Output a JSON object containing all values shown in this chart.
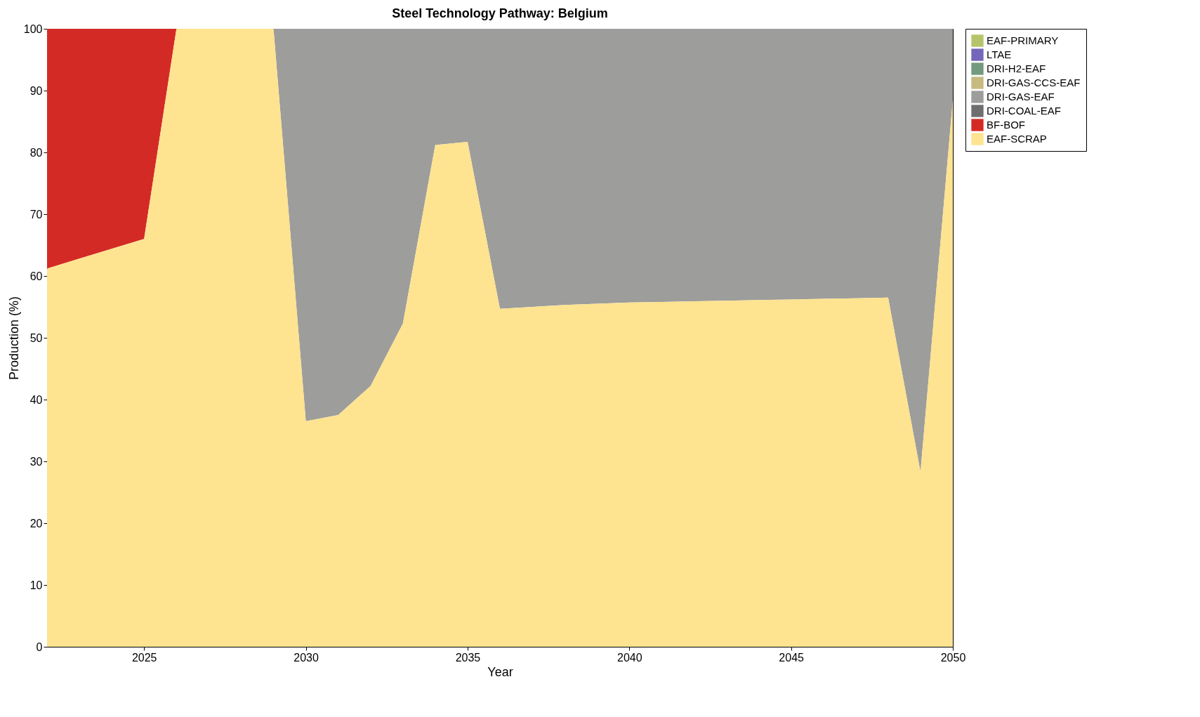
{
  "chart_data": {
    "type": "area",
    "stacked": true,
    "title": "Steel Technology Pathway: Belgium",
    "xlabel": "Year",
    "ylabel": "Production (%)",
    "x": [
      2022,
      2023,
      2024,
      2025,
      2026,
      2027,
      2028,
      2029,
      2030,
      2031,
      2032,
      2033,
      2034,
      2035,
      2036,
      2037,
      2038,
      2039,
      2040,
      2041,
      2042,
      2043,
      2044,
      2045,
      2046,
      2047,
      2048,
      2049,
      2050
    ],
    "series": [
      {
        "name": "EAF-SCRAP",
        "color": "#fee391",
        "values": [
          61.2,
          62.8,
          64.4,
          66,
          100,
          100,
          100,
          100,
          36.5,
          37.5,
          42.2,
          52.3,
          81.2,
          81.7,
          54.7,
          55,
          55.3,
          55.5,
          55.7,
          55.8,
          55.9,
          56,
          56.1,
          56.2,
          56.3,
          56.4,
          56.5,
          28.3,
          88.5
        ]
      },
      {
        "name": "BF-BOF",
        "color": "#d42a25",
        "values": [
          38.8,
          37.2,
          35.6,
          34,
          0,
          null,
          null,
          null,
          null,
          null,
          null,
          null,
          null,
          null,
          null,
          null,
          null,
          null,
          null,
          null,
          null,
          null,
          null,
          null,
          null,
          null,
          null,
          null,
          null
        ]
      },
      {
        "name": "DRI-COAL-EAF",
        "color": "#6e6e6e",
        "values": [
          null,
          null,
          null,
          null,
          null,
          null,
          null,
          null,
          null,
          null,
          null,
          null,
          null,
          null,
          null,
          null,
          null,
          null,
          null,
          null,
          null,
          null,
          null,
          null,
          null,
          null,
          null,
          null,
          null
        ]
      },
      {
        "name": "DRI-GAS-EAF",
        "color": "#9d9d9b",
        "values": [
          null,
          null,
          null,
          null,
          null,
          null,
          null,
          0,
          63.5,
          62.5,
          57.8,
          47.7,
          18.8,
          18.3,
          45.3,
          45,
          44.7,
          44.5,
          44.3,
          44.2,
          44.1,
          44,
          43.9,
          43.8,
          43.7,
          43.6,
          43.5,
          71.7,
          11.5
        ]
      },
      {
        "name": "DRI-GAS-CCS-EAF",
        "color": "#c6ba7f",
        "values": [
          null,
          null,
          null,
          null,
          null,
          null,
          null,
          null,
          null,
          null,
          null,
          null,
          null,
          null,
          null,
          null,
          null,
          null,
          null,
          null,
          null,
          null,
          null,
          null,
          null,
          null,
          null,
          null,
          null
        ]
      },
      {
        "name": "DRI-H2-EAF",
        "color": "#739a7f",
        "values": [
          null,
          null,
          null,
          null,
          null,
          null,
          null,
          null,
          null,
          null,
          null,
          null,
          null,
          null,
          null,
          null,
          null,
          null,
          null,
          null,
          null,
          null,
          null,
          null,
          null,
          null,
          null,
          null,
          null
        ]
      },
      {
        "name": "LTAE",
        "color": "#7466bb",
        "values": [
          null,
          null,
          null,
          null,
          null,
          null,
          null,
          null,
          null,
          null,
          null,
          null,
          null,
          null,
          null,
          null,
          null,
          null,
          null,
          null,
          null,
          null,
          null,
          null,
          null,
          null,
          null,
          null,
          null
        ]
      },
      {
        "name": "EAF-PRIMARY",
        "color": "#b5c46a",
        "values": [
          null,
          null,
          null,
          null,
          null,
          null,
          null,
          null,
          null,
          null,
          null,
          null,
          null,
          null,
          null,
          null,
          null,
          null,
          null,
          null,
          null,
          null,
          null,
          null,
          null,
          null,
          null,
          null,
          null
        ]
      }
    ],
    "xlim": [
      2022,
      2050
    ],
    "xticks": [
      2025,
      2030,
      2035,
      2040,
      2045,
      2050
    ],
    "ylim": [
      0,
      100
    ],
    "yticks": [
      0,
      10,
      20,
      30,
      40,
      50,
      60,
      70,
      80,
      90,
      100
    ],
    "grid": false,
    "legend": "right"
  }
}
